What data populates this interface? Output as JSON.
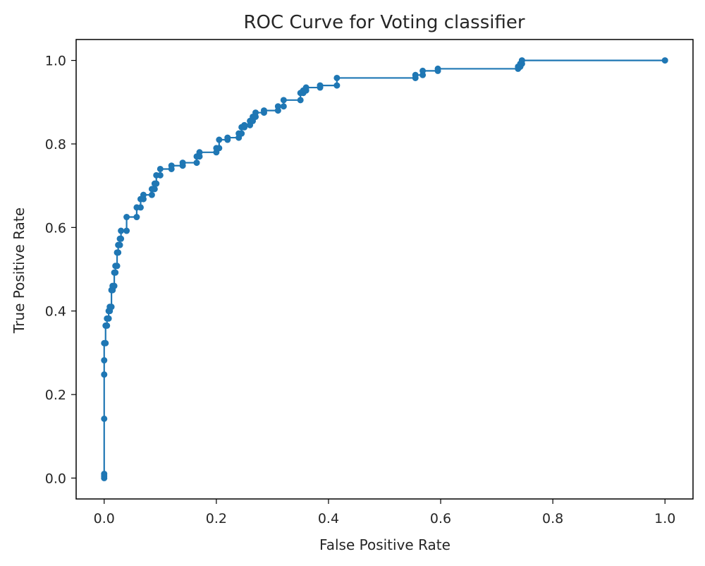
{
  "chart_data": {
    "type": "line",
    "title": "ROC Curve for Voting classifier",
    "xlabel": "False Positive Rate",
    "ylabel": "True Positive Rate",
    "xlim": [
      -0.05,
      1.05
    ],
    "ylim": [
      -0.05,
      1.05
    ],
    "grid": false,
    "legend": "none",
    "marker": "circle",
    "color": "#1f77b4",
    "x_ticks": [
      0.0,
      0.2,
      0.4,
      0.6,
      0.8,
      1.0
    ],
    "y_ticks": [
      0.0,
      0.2,
      0.4,
      0.6,
      0.8,
      1.0
    ],
    "x_tick_labels": [
      "0.0",
      "0.2",
      "0.4",
      "0.6",
      "0.8",
      "1.0"
    ],
    "y_tick_labels": [
      "0.0",
      "0.2",
      "0.4",
      "0.6",
      "0.8",
      "1.0"
    ],
    "series": [
      {
        "name": "Voting classifier",
        "x": [
          0.0,
          0.0,
          0.0,
          0.0,
          0.0,
          0.0,
          0.0,
          0.0025,
          0.0025,
          0.005,
          0.005,
          0.008,
          0.008,
          0.01,
          0.01,
          0.013,
          0.013,
          0.015,
          0.015,
          0.018,
          0.018,
          0.02,
          0.02,
          0.023,
          0.023,
          0.025,
          0.025,
          0.028,
          0.028,
          0.03,
          0.03,
          0.04,
          0.04,
          0.058,
          0.058,
          0.065,
          0.065,
          0.07,
          0.07,
          0.085,
          0.085,
          0.09,
          0.09,
          0.093,
          0.093,
          0.1,
          0.1,
          0.12,
          0.12,
          0.14,
          0.14,
          0.165,
          0.165,
          0.17,
          0.17,
          0.2,
          0.2,
          0.205,
          0.205,
          0.22,
          0.22,
          0.24,
          0.24,
          0.245,
          0.245,
          0.25,
          0.25,
          0.26,
          0.26,
          0.265,
          0.265,
          0.27,
          0.27,
          0.285,
          0.285,
          0.31,
          0.31,
          0.32,
          0.32,
          0.35,
          0.35,
          0.355,
          0.355,
          0.36,
          0.36,
          0.385,
          0.385,
          0.415,
          0.415,
          0.555,
          0.555,
          0.568,
          0.568,
          0.595,
          0.595,
          0.738,
          0.738,
          0.742,
          0.742,
          0.745,
          0.745,
          1.0
        ],
        "y": [
          0.0,
          0.005,
          0.01,
          0.142,
          0.248,
          0.282,
          0.323,
          0.323,
          0.365,
          0.365,
          0.382,
          0.382,
          0.4,
          0.4,
          0.41,
          0.41,
          0.45,
          0.45,
          0.46,
          0.46,
          0.492,
          0.492,
          0.508,
          0.508,
          0.54,
          0.54,
          0.558,
          0.558,
          0.573,
          0.573,
          0.592,
          0.592,
          0.625,
          0.625,
          0.648,
          0.648,
          0.668,
          0.668,
          0.678,
          0.678,
          0.692,
          0.692,
          0.705,
          0.705,
          0.725,
          0.725,
          0.74,
          0.74,
          0.748,
          0.748,
          0.755,
          0.755,
          0.77,
          0.77,
          0.78,
          0.78,
          0.79,
          0.79,
          0.81,
          0.81,
          0.815,
          0.815,
          0.825,
          0.825,
          0.84,
          0.84,
          0.845,
          0.845,
          0.855,
          0.855,
          0.865,
          0.865,
          0.875,
          0.875,
          0.88,
          0.88,
          0.89,
          0.89,
          0.905,
          0.905,
          0.922,
          0.922,
          0.928,
          0.928,
          0.935,
          0.935,
          0.94,
          0.94,
          0.958,
          0.958,
          0.965,
          0.965,
          0.975,
          0.975,
          0.98,
          0.98,
          0.985,
          0.985,
          0.992,
          0.992,
          1.0,
          1.0
        ]
      }
    ]
  }
}
